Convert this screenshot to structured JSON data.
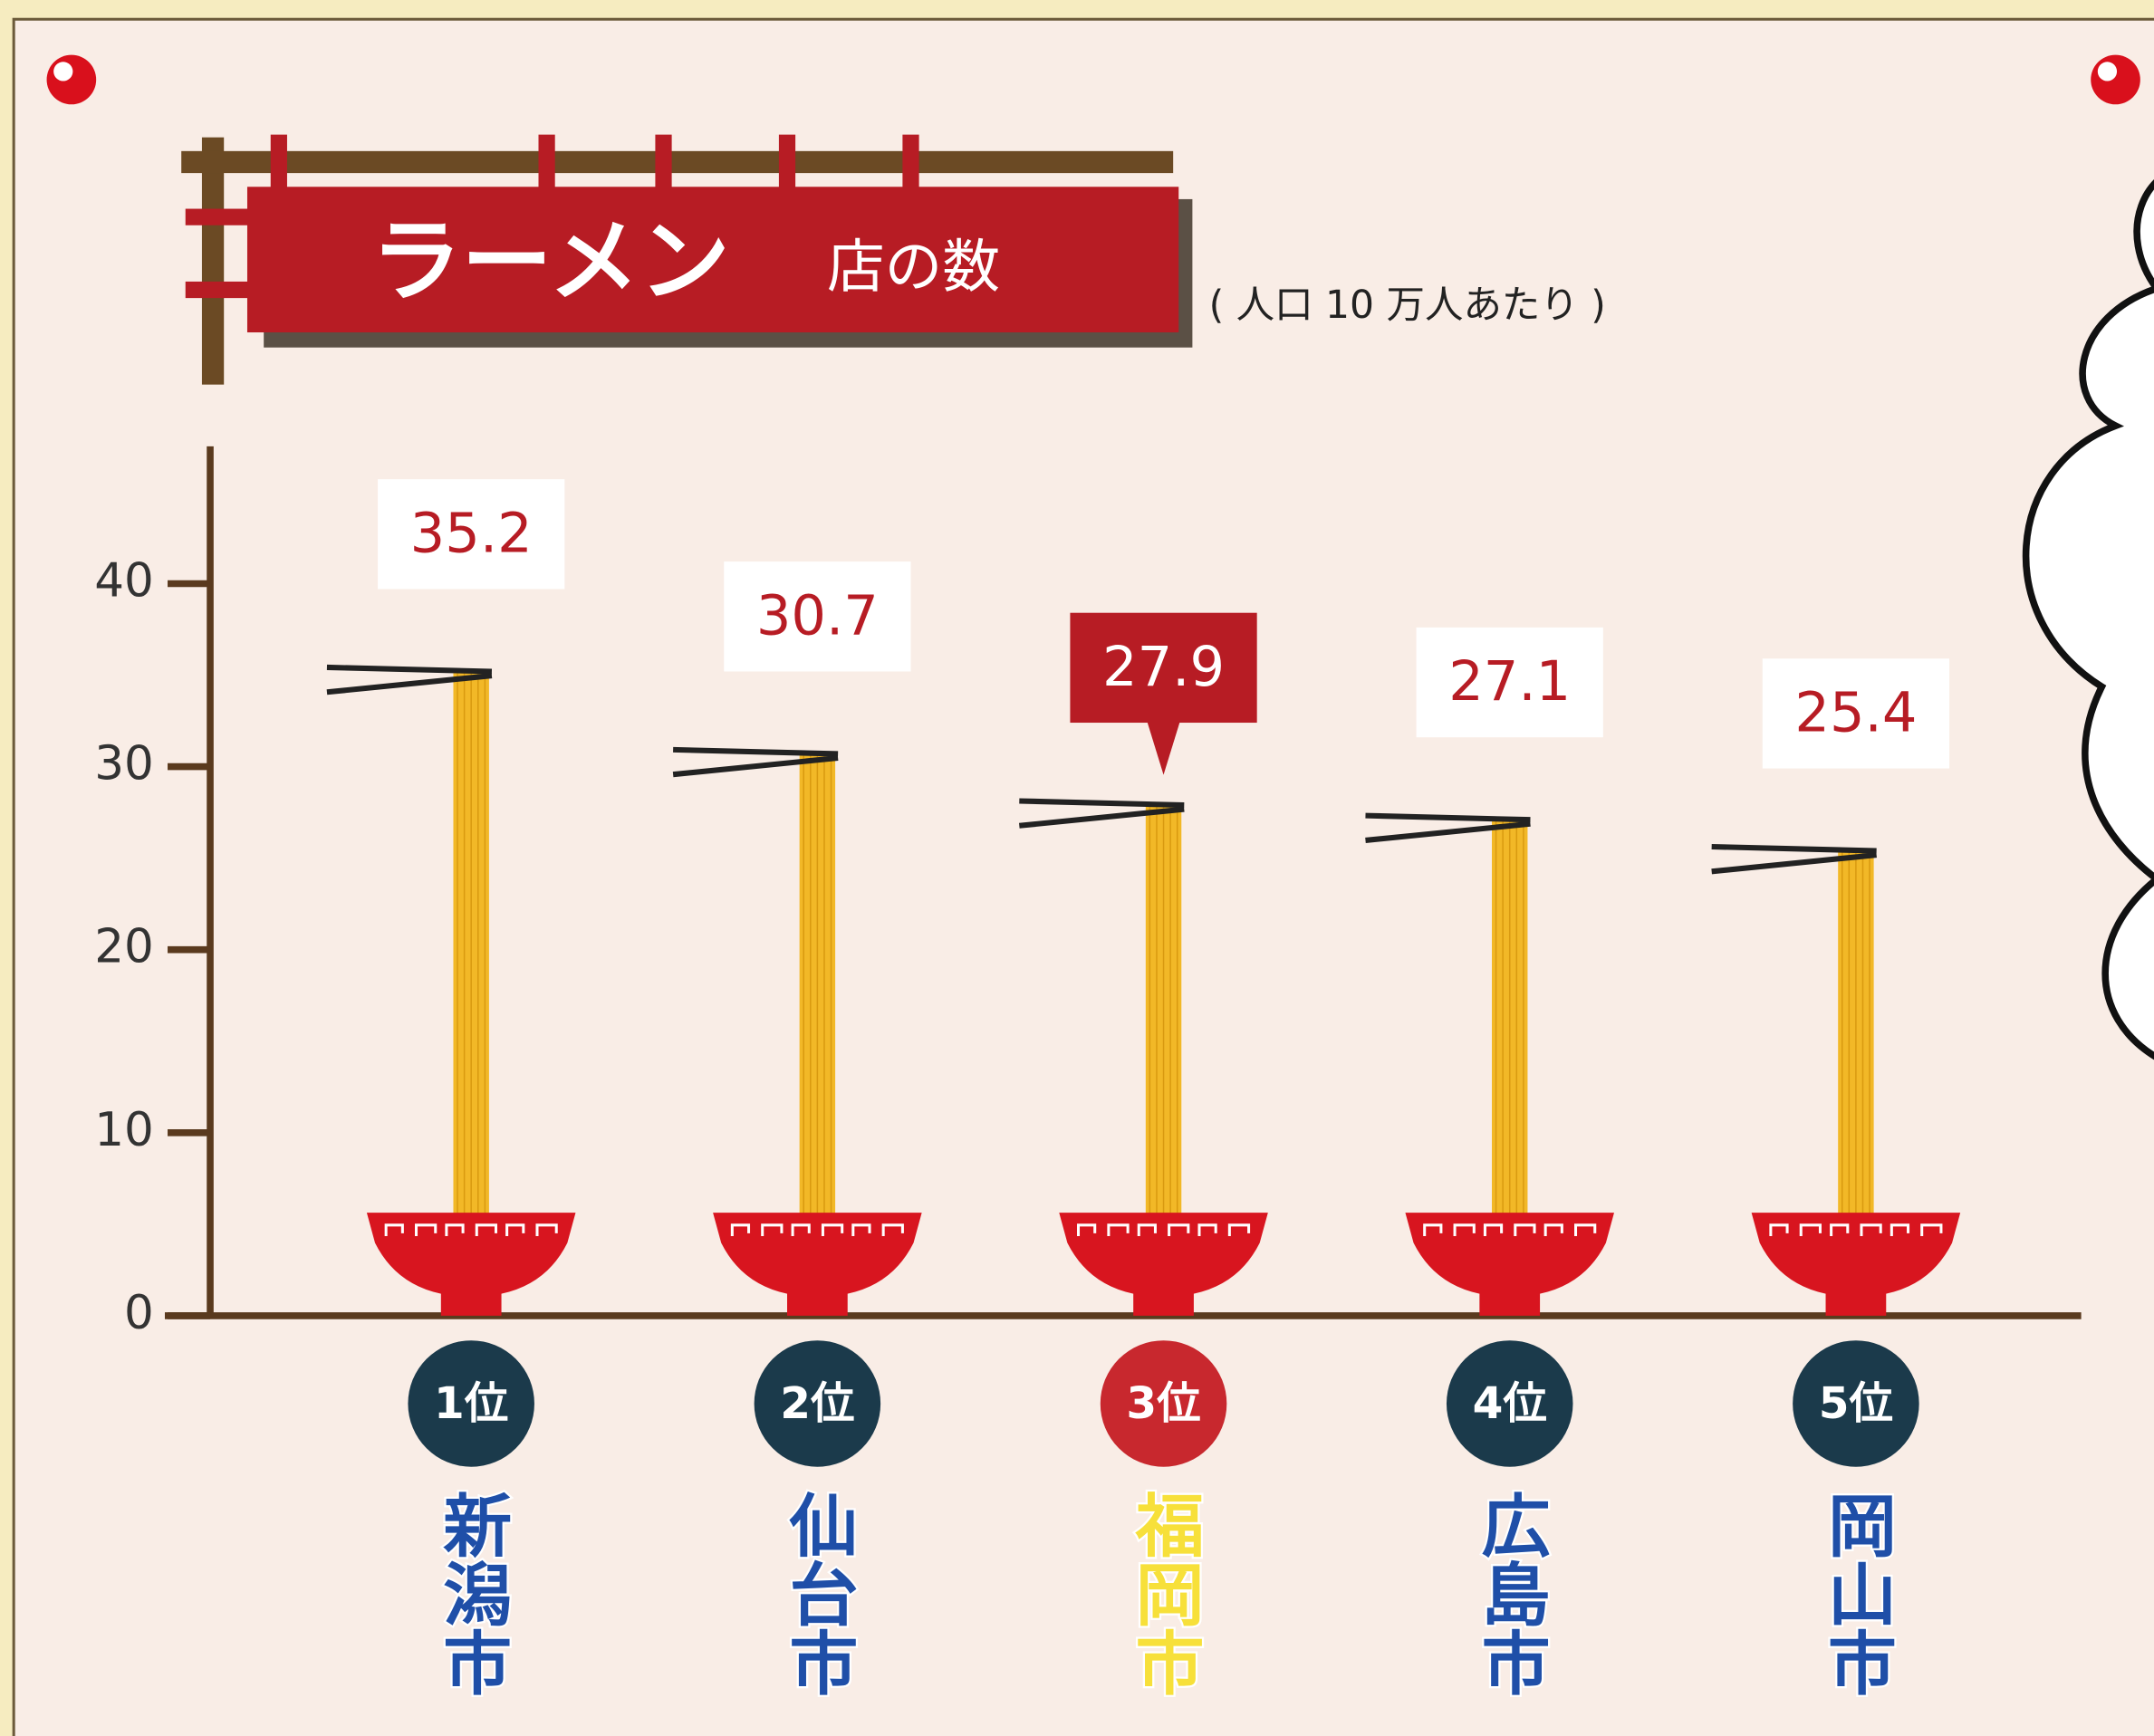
{
  "chart_data": {
    "type": "bar",
    "title": "ラーメン",
    "title_suffix": "店の数",
    "subtitle": "( 人口 10 万人あたり )",
    "ranks": [
      "1位",
      "2位",
      "3位",
      "4位",
      "5位"
    ],
    "categories": [
      "新潟市",
      "仙台市",
      "福岡市",
      "広島市",
      "岡山市"
    ],
    "values": [
      35.2,
      30.7,
      27.9,
      27.1,
      25.4
    ],
    "color": "#f2b827",
    "ylim": [
      0,
      47.5
    ],
    "yticks": [
      0,
      10,
      20,
      30,
      40
    ],
    "grid": false,
    "rank_colors": [
      "#1b3a4b",
      "#1b3a4b",
      "#c8282e",
      "#1b3a4b",
      "#1b3a4b"
    ],
    "city_colors": [
      "#1f4fa8",
      "#1f4fa8",
      "#f7e03a",
      "#1f4fa8",
      "#1f4fa8"
    ],
    "callout_colors": [
      "#ffffff",
      "#ffffff",
      "#b71c24",
      "#ffffff",
      "#ffffff"
    ],
    "value_label_colors": [
      "#b71c24",
      "#b71c24",
      "#ffffff",
      "#b71c24",
      "#b71c24"
    ]
  }
}
